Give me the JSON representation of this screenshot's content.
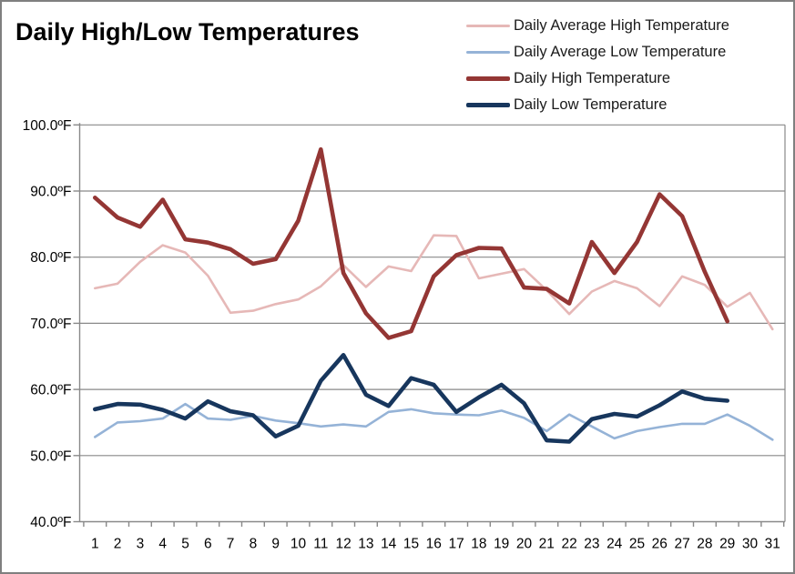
{
  "chart": {
    "title": "Daily High/Low Temperatures",
    "colors": {
      "background": "#ffffff",
      "border": "#7f7f7f",
      "gridline": "#898989",
      "axis": "#898989",
      "text": "#000000"
    },
    "chart_data": {
      "type": "line",
      "title": "Daily High/Low Temperatures",
      "xlabel": "",
      "ylabel": "",
      "x": [
        1,
        2,
        3,
        4,
        5,
        6,
        7,
        8,
        9,
        10,
        11,
        12,
        13,
        14,
        15,
        16,
        17,
        18,
        19,
        20,
        21,
        22,
        23,
        24,
        25,
        26,
        27,
        28,
        29,
        30,
        31
      ],
      "ylim": [
        40,
        100
      ],
      "grid": true,
      "legend_position": "top-right",
      "y_ticks": [
        {
          "v": 100,
          "label": "100.0ºF"
        },
        {
          "v": 90,
          "label": "90.0ºF"
        },
        {
          "v": 80,
          "label": "80.0ºF"
        },
        {
          "v": 70,
          "label": "70.0ºF"
        },
        {
          "v": 60,
          "label": "60.0ºF"
        },
        {
          "v": 50,
          "label": "50.0ºF"
        },
        {
          "v": 40,
          "label": "40.0ºF"
        }
      ],
      "series": [
        {
          "name": "Daily Average High Temperature",
          "color": "#e6b8b7",
          "line_width": 2.6,
          "values": [
            75.3,
            76.0,
            79.3,
            81.8,
            80.7,
            77.2,
            71.6,
            71.9,
            72.9,
            73.6,
            75.6,
            78.8,
            75.5,
            78.6,
            77.9,
            83.3,
            83.2,
            76.8,
            77.5,
            78.2,
            75.0,
            71.4,
            74.8,
            76.4,
            75.3,
            72.6,
            77.1,
            75.8,
            72.5,
            74.6,
            69.1
          ]
        },
        {
          "name": "Daily Average Low Temperature",
          "color": "#95b3d7",
          "line_width": 2.6,
          "values": [
            52.8,
            55.0,
            55.2,
            55.6,
            57.8,
            55.6,
            55.4,
            56.0,
            55.3,
            54.9,
            54.4,
            54.7,
            54.4,
            56.6,
            57.0,
            56.4,
            56.2,
            56.1,
            56.8,
            55.7,
            53.7,
            56.2,
            54.4,
            52.6,
            53.7,
            54.3,
            54.8,
            54.8,
            56.2,
            54.5,
            52.4
          ]
        },
        {
          "name": "Daily High Temperature",
          "color": "#943634",
          "line_width": 4.6,
          "values": [
            89.0,
            86.0,
            84.6,
            88.7,
            82.7,
            82.2,
            81.2,
            79.0,
            79.7,
            85.5,
            96.3,
            77.6,
            71.5,
            67.8,
            68.8,
            77.1,
            80.3,
            81.4,
            81.3,
            75.4,
            75.2,
            73.0,
            82.3,
            77.6,
            82.3,
            89.5,
            86.2,
            77.8,
            70.3,
            null,
            null
          ]
        },
        {
          "name": "Daily Low Temperature",
          "color": "#17365d",
          "line_width": 4.6,
          "values": [
            57.0,
            57.8,
            57.7,
            56.9,
            55.6,
            58.2,
            56.7,
            56.1,
            52.9,
            54.5,
            61.3,
            65.2,
            59.2,
            57.5,
            61.7,
            60.7,
            56.6,
            58.8,
            60.7,
            57.9,
            52.3,
            52.1,
            55.5,
            56.3,
            55.9,
            57.6,
            59.7,
            58.6,
            58.3,
            null,
            null
          ]
        }
      ]
    }
  }
}
